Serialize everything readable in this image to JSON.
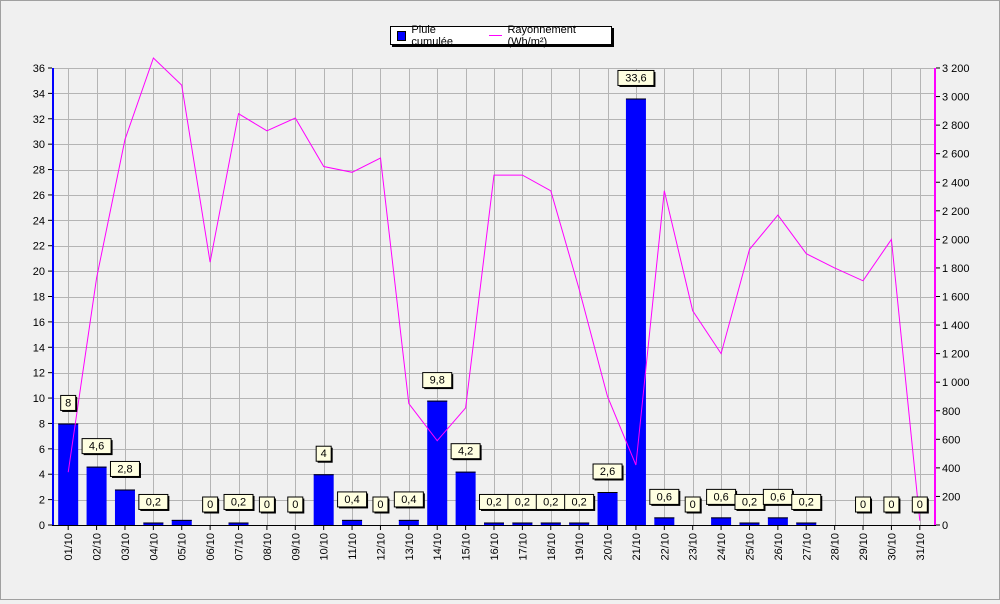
{
  "chart_data": {
    "type": "bar",
    "categories": [
      "01/10",
      "02/10",
      "03/10",
      "04/10",
      "05/10",
      "06/10",
      "07/10",
      "08/10",
      "09/10",
      "10/10",
      "11/10",
      "12/10",
      "13/10",
      "14/10",
      "15/10",
      "16/10",
      "17/10",
      "18/10",
      "19/10",
      "20/10",
      "21/10",
      "22/10",
      "23/10",
      "24/10",
      "25/10",
      "26/10",
      "27/10",
      "28/10",
      "29/10",
      "30/10",
      "31/10"
    ],
    "series": [
      {
        "name": "Pluie cumulée",
        "type": "bar",
        "axis": "left",
        "color": "#0000ff",
        "values": [
          8,
          4.6,
          2.8,
          0.2,
          0.4,
          0,
          0.2,
          0,
          0,
          4,
          0.4,
          0,
          0.4,
          9.8,
          4.2,
          0.2,
          0.2,
          0.2,
          0.2,
          2.6,
          33.6,
          0.6,
          0,
          0.6,
          0.2,
          0.6,
          0.2,
          0,
          0,
          0,
          0
        ],
        "labels": [
          "8",
          "4,6",
          "2,8",
          "0,2",
          null,
          "0",
          "0,2",
          "0",
          "0",
          "4",
          "0,4",
          "0",
          "0,4",
          "9,8",
          "4,2",
          "0,2",
          "0,2",
          "0,2",
          "0,2",
          "2,6",
          "33,6",
          "0,6",
          "0",
          "0,6",
          "0,2",
          "0,6",
          "0,2",
          null,
          "0",
          "0",
          "0"
        ]
      },
      {
        "name": "Rayonnement (Wh/m²)",
        "type": "line",
        "axis": "right",
        "color": "#ff00ff",
        "values": [
          370,
          1730,
          2700,
          3270,
          3080,
          1840,
          2880,
          2760,
          2850,
          2510,
          2470,
          2570,
          850,
          590,
          820,
          2450,
          2450,
          2340,
          1650,
          900,
          420,
          2340,
          1500,
          1200,
          1930,
          2170,
          1900,
          1800,
          1710,
          2000,
          30
        ]
      }
    ],
    "ylim_left": [
      0,
      36
    ],
    "yticks_left": [
      0,
      2,
      4,
      6,
      8,
      10,
      12,
      14,
      16,
      18,
      20,
      22,
      24,
      26,
      28,
      30,
      32,
      34,
      36
    ],
    "ylim_right": [
      0,
      3200
    ],
    "yticks_right": [
      0,
      200,
      400,
      600,
      800,
      1000,
      1200,
      1400,
      1600,
      1800,
      2000,
      2200,
      2400,
      2600,
      2800,
      3000,
      3200
    ],
    "grid": true,
    "legend_position": "top-center",
    "title": "",
    "xlabel": "",
    "ylabel": ""
  }
}
